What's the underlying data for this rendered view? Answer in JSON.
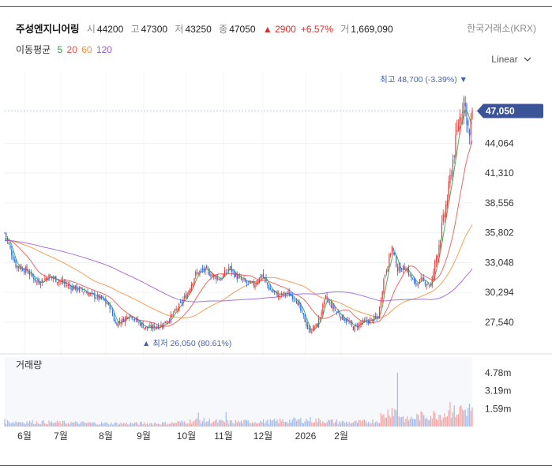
{
  "header": {
    "name": "주성엔지니어링",
    "open_label": "시",
    "open": "44200",
    "high_label": "고",
    "high": "47300",
    "low_label": "저",
    "low": "43250",
    "close_label": "종",
    "close": "47050",
    "change": "▲ 2900",
    "change_pct": "+6.57%",
    "volume_label": "거",
    "volume": "1,669,090",
    "exchange": "한국거래소(KRX)"
  },
  "moving_average": {
    "label": "이동평균",
    "periods": [
      {
        "text": "5",
        "color": "#2ea043"
      },
      {
        "text": "20",
        "color": "#e8504a"
      },
      {
        "text": "60",
        "color": "#f0913a"
      },
      {
        "text": "120",
        "color": "#9b59d0"
      }
    ]
  },
  "scale_selector": {
    "label": "Linear",
    "icon": "chevron-down-icon"
  },
  "chart_data": {
    "type": "candlestick",
    "price_axis": {
      "ticks": [
        "44,064",
        "41,310",
        "38,556",
        "35,802",
        "33,048",
        "30,294",
        "27,540"
      ],
      "tick_values": [
        44064,
        41310,
        38556,
        35802,
        33048,
        30294,
        27540
      ],
      "ylim": [
        25200,
        50000
      ]
    },
    "current_price_label": "47,050",
    "current_price": 47050,
    "max_annotation": "최고 48,700 (-3.39%) ▼",
    "max_price": 48700,
    "min_annotation": "▲ 최저 26,050 (80.61%)",
    "min_price": 26050,
    "volume_panel": {
      "title": "거래량",
      "ticks": [
        "4.78m",
        "3.19m",
        "1.59m"
      ],
      "tick_values": [
        4780000,
        3190000,
        1590000
      ],
      "ylim": [
        0,
        6200000
      ]
    },
    "x_ticks": [
      "6월",
      "7월",
      "8월",
      "9월",
      "10월",
      "11월",
      "12월",
      "2026",
      "2월"
    ],
    "close_path": [
      [
        0,
        35800
      ],
      [
        8,
        32800
      ],
      [
        16,
        32300
      ],
      [
        24,
        31200
      ],
      [
        32,
        31800
      ],
      [
        40,
        31300
      ],
      [
        48,
        30800
      ],
      [
        56,
        30500
      ],
      [
        62,
        30100
      ],
      [
        70,
        29700
      ],
      [
        76,
        29000
      ],
      [
        80,
        27400
      ],
      [
        86,
        27800
      ],
      [
        90,
        28300
      ],
      [
        96,
        27600
      ],
      [
        102,
        27000
      ],
      [
        108,
        27100
      ],
      [
        114,
        27300
      ],
      [
        120,
        28000
      ],
      [
        126,
        29000
      ],
      [
        132,
        30200
      ],
      [
        138,
        32000
      ],
      [
        144,
        32400
      ],
      [
        150,
        31900
      ],
      [
        156,
        31500
      ],
      [
        162,
        32600
      ],
      [
        168,
        31700
      ],
      [
        174,
        31200
      ],
      [
        180,
        31000
      ],
      [
        186,
        31900
      ],
      [
        192,
        30500
      ],
      [
        198,
        30000
      ],
      [
        204,
        30200
      ],
      [
        210,
        29800
      ],
      [
        216,
        28000
      ],
      [
        220,
        26700
      ],
      [
        226,
        27300
      ],
      [
        232,
        29800
      ],
      [
        236,
        29100
      ],
      [
        242,
        28200
      ],
      [
        248,
        27600
      ],
      [
        252,
        27000
      ],
      [
        258,
        27500
      ],
      [
        264,
        27700
      ],
      [
        270,
        28000
      ],
      [
        274,
        31500
      ],
      [
        280,
        34500
      ],
      [
        284,
        32400
      ],
      [
        290,
        32600
      ],
      [
        296,
        31100
      ],
      [
        302,
        31400
      ],
      [
        308,
        30900
      ],
      [
        312,
        33500
      ],
      [
        316,
        36200
      ],
      [
        320,
        39000
      ],
      [
        324,
        42500
      ],
      [
        328,
        45800
      ],
      [
        332,
        48200
      ],
      [
        334,
        46500
      ],
      [
        336,
        44500
      ],
      [
        338,
        47050
      ]
    ],
    "volume_profile": [
      [
        0,
        0.45
      ],
      [
        40,
        0.35
      ],
      [
        80,
        0.28
      ],
      [
        120,
        0.3
      ],
      [
        140,
        0.55
      ],
      [
        160,
        0.4
      ],
      [
        190,
        0.45
      ],
      [
        220,
        0.6
      ],
      [
        250,
        0.35
      ],
      [
        270,
        0.5
      ],
      [
        280,
        1.6
      ],
      [
        290,
        0.6
      ],
      [
        300,
        0.9
      ],
      [
        316,
        1.1
      ],
      [
        330,
        1.4
      ],
      [
        338,
        1.6
      ]
    ],
    "volume_spikes": [
      [
        140,
        1.25
      ],
      [
        160,
        1.3
      ],
      [
        272,
        1.2
      ],
      [
        284,
        4.8
      ],
      [
        322,
        2.2
      ],
      [
        330,
        1.9
      ]
    ]
  }
}
